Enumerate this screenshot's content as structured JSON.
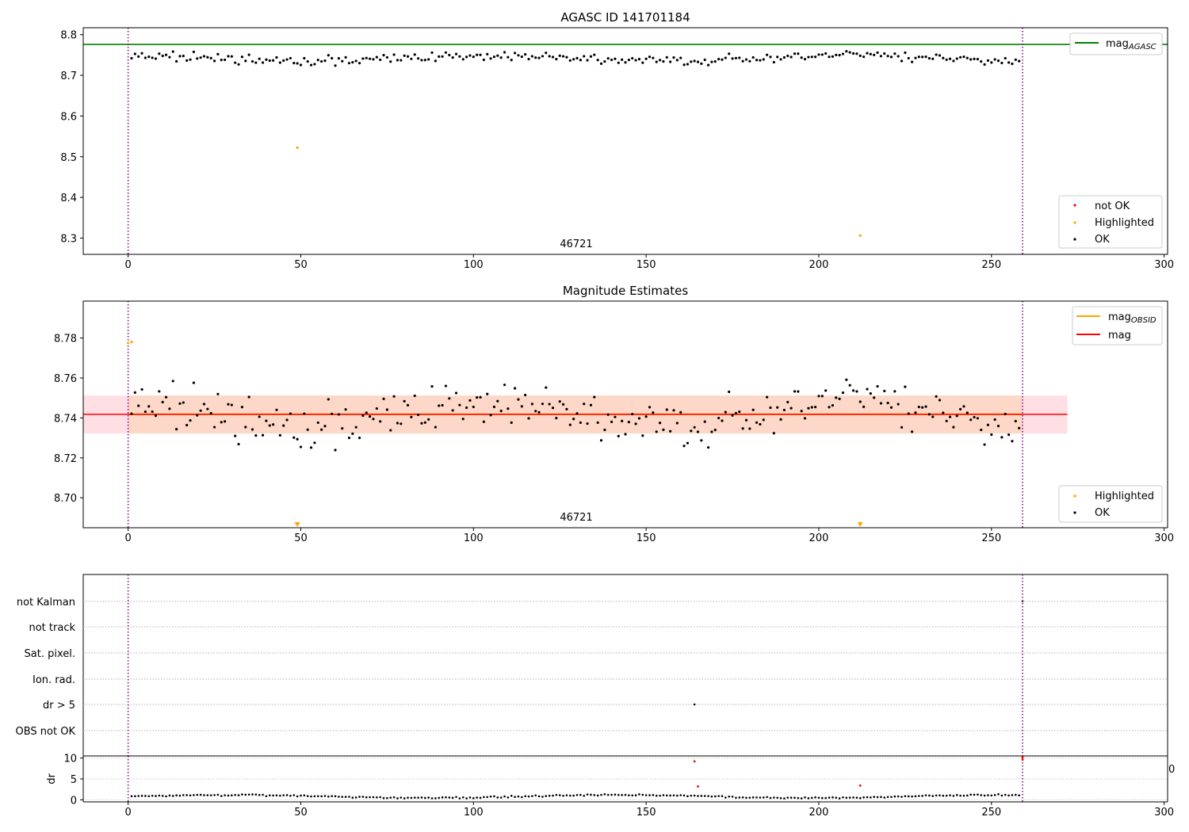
{
  "chart_data": [
    {
      "type": "scatter",
      "title": "AGASC ID 141701184",
      "annotation": "46721",
      "xlim": [
        -13,
        301
      ],
      "ylim": [
        8.26,
        8.817
      ],
      "xticks": [
        0,
        50,
        100,
        150,
        200,
        250,
        300
      ],
      "yticks": [
        8.3,
        8.4,
        8.5,
        8.6,
        8.7,
        8.8
      ],
      "xticks_text": [
        "0",
        "50",
        "100",
        "150",
        "200",
        "250",
        "300"
      ],
      "yticks_text": [
        "8.3",
        "8.4",
        "8.5",
        "8.6",
        "8.7",
        "8.8"
      ],
      "hlines": [
        {
          "name": "mag_AGASC",
          "label": "mag",
          "label_sub": "AGASC",
          "y": 8.776,
          "color": "#008000"
        }
      ],
      "vlines": [
        0,
        259
      ],
      "vline_color": "#800080",
      "legend_top": [
        {
          "label": "mag",
          "sub": "AGASC",
          "kind": "line",
          "color": "#008000"
        }
      ],
      "legend_bottom": [
        {
          "label": "not OK",
          "kind": "dot",
          "color": "#ff0000"
        },
        {
          "label": "Highlighted",
          "kind": "dot",
          "color": "#ffa500"
        },
        {
          "label": "OK",
          "kind": "dot",
          "color": "#000000"
        }
      ],
      "highlighted": [
        [
          49,
          8.522
        ],
        [
          212,
          8.306
        ]
      ]
    },
    {
      "type": "scatter",
      "title": "Magnitude Estimates",
      "annotation": "46721",
      "xlim": [
        -13,
        301
      ],
      "ylim": [
        8.685,
        8.7985
      ],
      "xticks": [
        0,
        50,
        100,
        150,
        200,
        250,
        300
      ],
      "yticks": [
        8.7,
        8.72,
        8.74,
        8.76,
        8.78
      ],
      "xticks_text": [
        "0",
        "50",
        "100",
        "150",
        "200",
        "250",
        "300"
      ],
      "yticks_text": [
        "8.70",
        "8.72",
        "8.74",
        "8.76",
        "8.78"
      ],
      "mag_line": {
        "y": 8.7418,
        "x0": -13,
        "x1": 272,
        "color": "#ff0000"
      },
      "mag_band_outer": {
        "y0": 8.7322,
        "y1": 8.7512,
        "x0": -13,
        "x1": 272,
        "color": "#ffdfe4"
      },
      "mag_band_inner": {
        "y0": 8.7322,
        "y1": 8.7512,
        "x0": 0,
        "x1": 259,
        "color": "#fdd8c8"
      },
      "obsid_line": {
        "y": 8.7418,
        "x0": 0,
        "x1": 259,
        "color": "#ffa500"
      },
      "vlines": [
        0,
        259
      ],
      "vline_color": "#800080",
      "legend_top": [
        {
          "label": "mag",
          "sub": "OBSID",
          "kind": "line",
          "color": "#ffa500"
        },
        {
          "label": "mag",
          "sub": "",
          "kind": "line",
          "color": "#ff0000"
        }
      ],
      "legend_bottom": [
        {
          "label": "Highlighted",
          "kind": "dot",
          "color": "#ffa500"
        },
        {
          "label": "OK",
          "kind": "dot",
          "color": "#000000"
        }
      ],
      "highlighted": [
        [
          0,
          8.7775
        ],
        [
          1,
          8.778
        ]
      ],
      "highlighted_arrows": [
        49,
        212
      ]
    },
    {
      "type": "scatter",
      "title": "",
      "flag_labels": [
        "not Kalman",
        "not track",
        "Sat. pixel.",
        "Ion. rad.",
        "dr > 5",
        "OBS not OK"
      ],
      "flag_points": [
        {
          "flag": "dr > 5",
          "x": 164,
          "color": "#000000"
        },
        {
          "flag": "not Kalman",
          "x": 259,
          "color": "#555555"
        }
      ],
      "vlines": [
        0,
        259
      ],
      "vline_color": "#800080"
    },
    {
      "type": "scatter",
      "title": "",
      "ylabel": "dr",
      "xlim": [
        -13,
        301
      ],
      "ylim": [
        -0.5,
        10.5
      ],
      "xticks": [
        0,
        50,
        100,
        150,
        200,
        250,
        300
      ],
      "yticks": [
        0,
        5,
        10
      ],
      "xticks_text": [
        "0",
        "50",
        "100",
        "150",
        "200",
        "250",
        "300"
      ],
      "yticks_text": [
        "0",
        "5",
        "10"
      ],
      "right_edge_label": "0",
      "outliers": [
        [
          164,
          9.2,
          "#ff0000"
        ],
        [
          165,
          3.2,
          "#ff0000"
        ],
        [
          212,
          3.4,
          "#ff0000"
        ],
        [
          259,
          9.6,
          "#ff0000"
        ],
        [
          259,
          10.1,
          "#ff0000"
        ]
      ]
    }
  ]
}
